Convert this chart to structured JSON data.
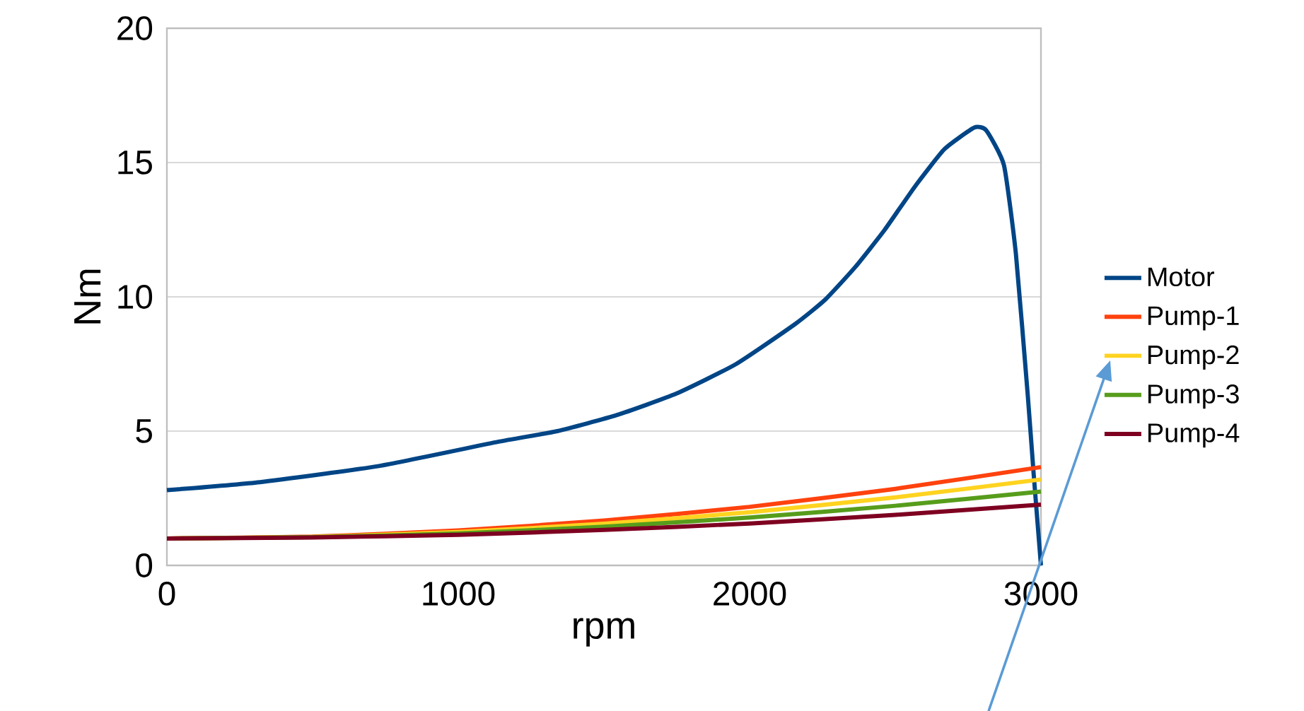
{
  "chart_data": {
    "type": "line",
    "xlabel": "rpm",
    "ylabel": "Nm",
    "xlim": [
      0,
      3000
    ],
    "ylim": [
      0,
      20
    ],
    "xticks": [
      0,
      1000,
      2000,
      3000
    ],
    "yticks": [
      0,
      5,
      10,
      15,
      20
    ],
    "grid": "y",
    "legend": "right",
    "marker": "none",
    "line_style": "solid",
    "series": [
      {
        "name": "Motor",
        "color": "#004586",
        "x": [
          0,
          319,
          728,
          1136,
          1340,
          1545,
          1749,
          1954,
          2158,
          2260,
          2362,
          2464,
          2567,
          2669,
          2771,
          2812,
          2873,
          2914,
          2955,
          2975,
          3000
        ],
        "values": [
          2.8,
          3.1,
          3.7,
          4.6,
          5.0,
          5.6,
          6.4,
          7.5,
          9.0,
          9.9,
          11.1,
          12.5,
          14.1,
          15.5,
          16.3,
          16.2,
          14.9,
          11.6,
          6.3,
          3.4,
          0
        ]
      },
      {
        "name": "Pump-1",
        "color": "#ff420e",
        "x": [
          0,
          500,
          1000,
          1500,
          2000,
          2500,
          3000
        ],
        "values": [
          1.0,
          1.07,
          1.3,
          1.67,
          2.18,
          2.85,
          3.66
        ]
      },
      {
        "name": "Pump-2",
        "color": "#ffd320",
        "x": [
          0,
          500,
          1000,
          1500,
          2000,
          2500,
          3000
        ],
        "values": [
          1.0,
          1.06,
          1.24,
          1.55,
          1.98,
          2.53,
          3.2
        ]
      },
      {
        "name": "Pump-3",
        "color": "#579d1c",
        "x": [
          0,
          500,
          1000,
          1500,
          2000,
          2500,
          3000
        ],
        "values": [
          1.0,
          1.05,
          1.19,
          1.44,
          1.78,
          2.22,
          2.75
        ]
      },
      {
        "name": "Pump-4",
        "color": "#7e0021",
        "x": [
          0,
          500,
          1000,
          1500,
          2000,
          2500,
          3000
        ],
        "values": [
          1.0,
          1.04,
          1.14,
          1.32,
          1.56,
          1.88,
          2.26
        ]
      }
    ]
  }
}
